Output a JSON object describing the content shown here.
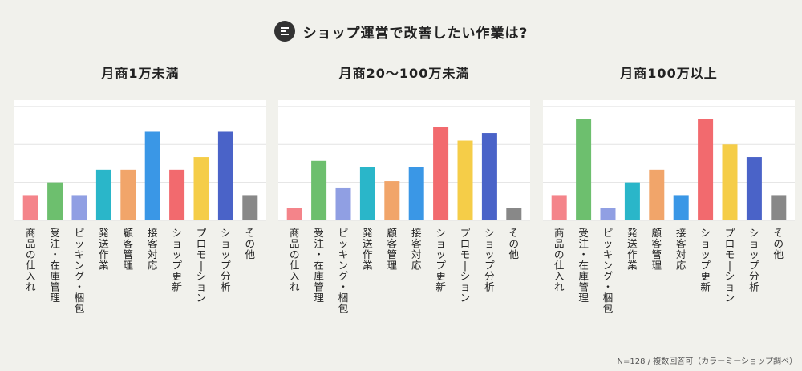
{
  "header": {
    "title": "ショップ運営で改善したい作業は?",
    "icon": "document-icon"
  },
  "footnote": "N=128 / 複数回答可（カラーミーショップ調べ）",
  "colors": [
    "#f4848a",
    "#6dbf6e",
    "#909fe3",
    "#2ab6c9",
    "#f1a56a",
    "#3a97e6",
    "#f26a6e",
    "#f5cd48",
    "#4a63c8",
    "#888888"
  ],
  "chart_data": [
    {
      "type": "bar",
      "title": "月商1万未満",
      "categories": [
        "商品の仕入れ",
        "受注・在庫管理",
        "ピッキング・梱包",
        "発送作業",
        "顧客管理",
        "接客対応",
        "ショップ更新",
        "プロモーション",
        "ショップ分析",
        "その他"
      ],
      "values": [
        2,
        3,
        2,
        4,
        4,
        7,
        4,
        5,
        7,
        2
      ],
      "ylim": [
        0,
        9.5
      ],
      "grid": true
    },
    {
      "type": "bar",
      "title": "月商20〜100万未満",
      "categories": [
        "商品の仕入れ",
        "受注・在庫管理",
        "ピッキング・梱包",
        "発送作業",
        "顧客管理",
        "接客対応",
        "ショップ更新",
        "プロモーション",
        "ショップ分析",
        "その他"
      ],
      "values": [
        1,
        4.7,
        2.6,
        4.2,
        3.1,
        4.2,
        7.4,
        6.3,
        6.9,
        1
      ],
      "ylim": [
        0,
        9.5
      ],
      "grid": true
    },
    {
      "type": "bar",
      "title": "月商100万以上",
      "categories": [
        "商品の仕入れ",
        "受注・在庫管理",
        "ピッキング・梱包",
        "発送作業",
        "顧客管理",
        "接客対応",
        "ショップ更新",
        "プロモーション",
        "ショップ分析",
        "その他"
      ],
      "values": [
        2,
        8,
        1,
        3,
        4,
        2,
        8,
        6,
        5,
        2
      ],
      "ylim": [
        0,
        9.5
      ],
      "grid": true
    }
  ]
}
